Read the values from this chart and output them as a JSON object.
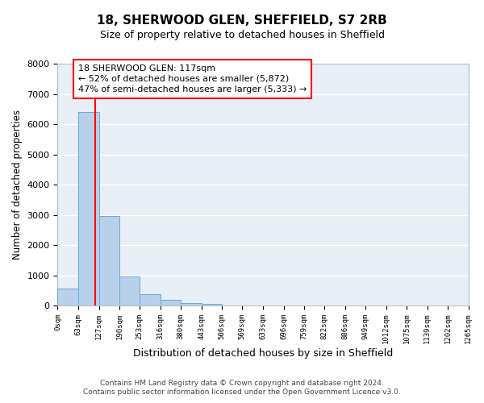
{
  "title": "18, SHERWOOD GLEN, SHEFFIELD, S7 2RB",
  "subtitle": "Size of property relative to detached houses in Sheffield",
  "xlabel": "Distribution of detached houses by size in Sheffield",
  "ylabel": "Number of detached properties",
  "bar_color": "#b8d0ea",
  "bar_edge_color": "#6aaad4",
  "background_color": "#e8eef5",
  "grid_color": "white",
  "vline_x": 117,
  "vline_color": "red",
  "bin_edges": [
    0,
    63,
    127,
    190,
    253,
    316,
    380,
    443,
    506,
    569,
    633,
    696,
    759,
    822,
    886,
    949,
    1012,
    1075,
    1139,
    1202,
    1265
  ],
  "bar_heights": [
    550,
    6400,
    2950,
    970,
    380,
    190,
    90,
    55,
    0,
    0,
    0,
    0,
    0,
    0,
    0,
    0,
    0,
    0,
    0,
    0
  ],
  "ylim": [
    0,
    8000
  ],
  "yticks": [
    0,
    1000,
    2000,
    3000,
    4000,
    5000,
    6000,
    7000,
    8000
  ],
  "ann_line1": "18 SHERWOOD GLEN: 117sqm",
  "ann_line2": "← 52% of detached houses are smaller (5,872)",
  "ann_line3": "47% of semi-detached houses are larger (5,333) →",
  "footnote1": "Contains HM Land Registry data © Crown copyright and database right 2024.",
  "footnote2": "Contains public sector information licensed under the Open Government Licence v3.0."
}
